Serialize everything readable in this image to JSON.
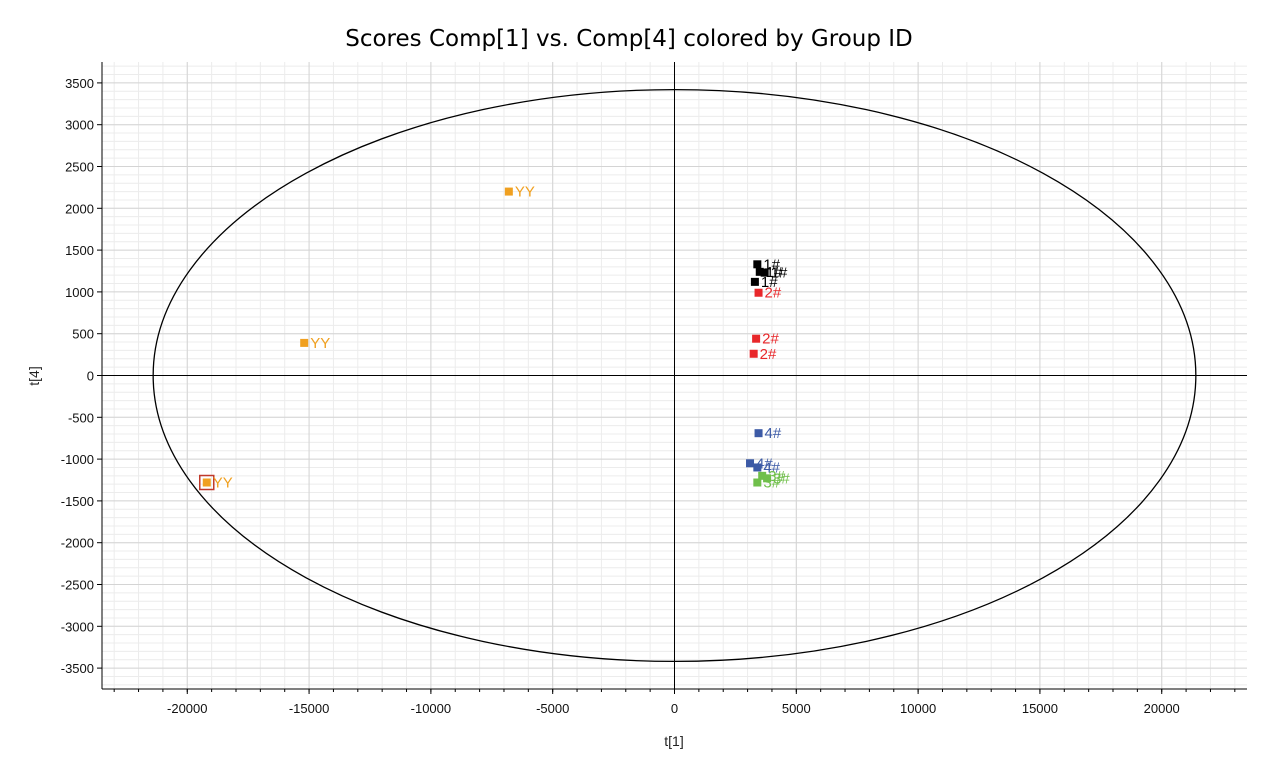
{
  "chart_data": {
    "type": "scatter",
    "title": "Scores Comp[1] vs. Comp[4] colored by Group ID",
    "xlabel": "t[1]",
    "ylabel": "t[4]",
    "xlim": [
      -23500,
      23500
    ],
    "ylim": [
      -3750,
      3750
    ],
    "xticks": [
      -20000,
      -15000,
      -10000,
      -5000,
      0,
      5000,
      10000,
      15000,
      20000
    ],
    "yticks": [
      3500,
      3000,
      2500,
      2000,
      1500,
      1000,
      500,
      0,
      -500,
      -1000,
      -1500,
      -2000,
      -2500,
      -3000,
      -3500
    ],
    "x_minor_step": 1000,
    "y_minor_step": 100,
    "grid": true,
    "ellipse": {
      "rx": 21400,
      "ry": 3420
    },
    "highlighted_point": {
      "x": -19200,
      "y": -1280
    },
    "series": [
      {
        "name": "1#",
        "color": "#000000",
        "points": [
          {
            "x": 3400,
            "y": 1330,
            "label": "1#"
          },
          {
            "x": 3500,
            "y": 1240,
            "label": "1#"
          },
          {
            "x": 3700,
            "y": 1230,
            "label": "1#"
          },
          {
            "x": 3300,
            "y": 1120,
            "label": "1#"
          }
        ]
      },
      {
        "name": "2#",
        "color": "#e8272a",
        "points": [
          {
            "x": 3450,
            "y": 990,
            "label": "2#"
          },
          {
            "x": 3350,
            "y": 440,
            "label": "2#"
          },
          {
            "x": 3250,
            "y": 260,
            "label": "2#"
          }
        ]
      },
      {
        "name": "4#",
        "color": "#3c5aa6",
        "points": [
          {
            "x": 3450,
            "y": -690,
            "label": "4#"
          },
          {
            "x": 3100,
            "y": -1050,
            "label": "4#"
          },
          {
            "x": 3400,
            "y": -1100,
            "label": "4#"
          }
        ]
      },
      {
        "name": "3#",
        "color": "#6fbf4a",
        "points": [
          {
            "x": 3600,
            "y": -1200,
            "label": "3#"
          },
          {
            "x": 3800,
            "y": -1230,
            "label": "3#"
          },
          {
            "x": 3400,
            "y": -1280,
            "label": "3#"
          }
        ]
      },
      {
        "name": "YY",
        "color": "#f0a020",
        "points": [
          {
            "x": -6800,
            "y": 2200,
            "label": "YY"
          },
          {
            "x": -15200,
            "y": 390,
            "label": "YY"
          },
          {
            "x": -19200,
            "y": -1280,
            "label": "YY"
          }
        ]
      }
    ]
  }
}
